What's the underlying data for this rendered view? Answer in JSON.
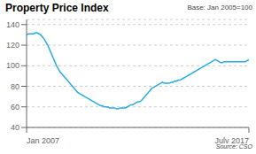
{
  "chart_data": {
    "type": "line",
    "title": "Property Price Index",
    "subtitle": "Base: Jan 2005=100",
    "annotations": [
      "Source: CSO"
    ],
    "color": "#29abe2",
    "grid": true,
    "xlim": [
      0,
      126
    ],
    "xticks": [
      {
        "value": 0,
        "label": "Jan 2007"
      },
      {
        "value": 126,
        "label": "July 2017"
      }
    ],
    "ylim": [
      40,
      145
    ],
    "yticks": [
      40,
      60,
      80,
      100,
      120,
      140
    ],
    "x": [
      0,
      1,
      2,
      3,
      4,
      5,
      6,
      7,
      8,
      9,
      10,
      11,
      12,
      13,
      14,
      15,
      16,
      17,
      18,
      19,
      20,
      21,
      22,
      23,
      24,
      25,
      26,
      27,
      28,
      29,
      30,
      31,
      32,
      33,
      34,
      35,
      36,
      37,
      38,
      39,
      40,
      41,
      42,
      43,
      44,
      45,
      46,
      47,
      48,
      49,
      50,
      51,
      52,
      53,
      54,
      55,
      56,
      57,
      58,
      59,
      60,
      61,
      62,
      63,
      64,
      65,
      66,
      67,
      68,
      69,
      70,
      71,
      72,
      73,
      74,
      75,
      76,
      77,
      78,
      79,
      80,
      81,
      82,
      83,
      84,
      85,
      86,
      87,
      88,
      89,
      90,
      91,
      92,
      93,
      94,
      95,
      96,
      97,
      98,
      99,
      100,
      101,
      102,
      103,
      104,
      105,
      106,
      107,
      108,
      109,
      110,
      111,
      112,
      113,
      114,
      115,
      116,
      117,
      118,
      119,
      120,
      121,
      122,
      123,
      124,
      125,
      126
    ],
    "values": [
      130,
      131,
      131,
      131,
      131,
      132,
      132,
      131,
      130,
      128,
      126,
      123,
      120,
      116,
      112,
      108,
      104,
      100,
      97,
      94,
      92,
      90,
      88,
      86,
      84,
      82,
      80,
      78,
      76,
      74,
      73,
      72,
      71,
      70,
      69,
      68,
      67,
      66,
      65,
      64,
      63,
      62,
      61,
      61,
      60,
      60,
      60,
      59,
      59,
      59,
      59,
      58,
      58,
      59,
      59,
      59,
      59,
      60,
      61,
      62,
      62,
      63,
      64,
      65,
      65,
      66,
      68,
      70,
      72,
      74,
      76,
      78,
      79,
      80,
      81,
      82,
      83,
      84,
      83,
      83,
      83,
      83,
      84,
      84,
      85,
      85,
      86,
      86,
      87,
      88,
      89,
      90,
      91,
      92,
      93,
      94,
      95,
      96,
      97,
      98,
      99,
      100,
      101,
      102,
      103,
      104,
      105,
      106,
      105,
      104,
      103,
      103,
      104,
      104,
      104,
      104,
      104,
      104,
      104,
      104,
      104,
      104,
      104,
      104,
      104,
      105,
      106
    ]
  }
}
